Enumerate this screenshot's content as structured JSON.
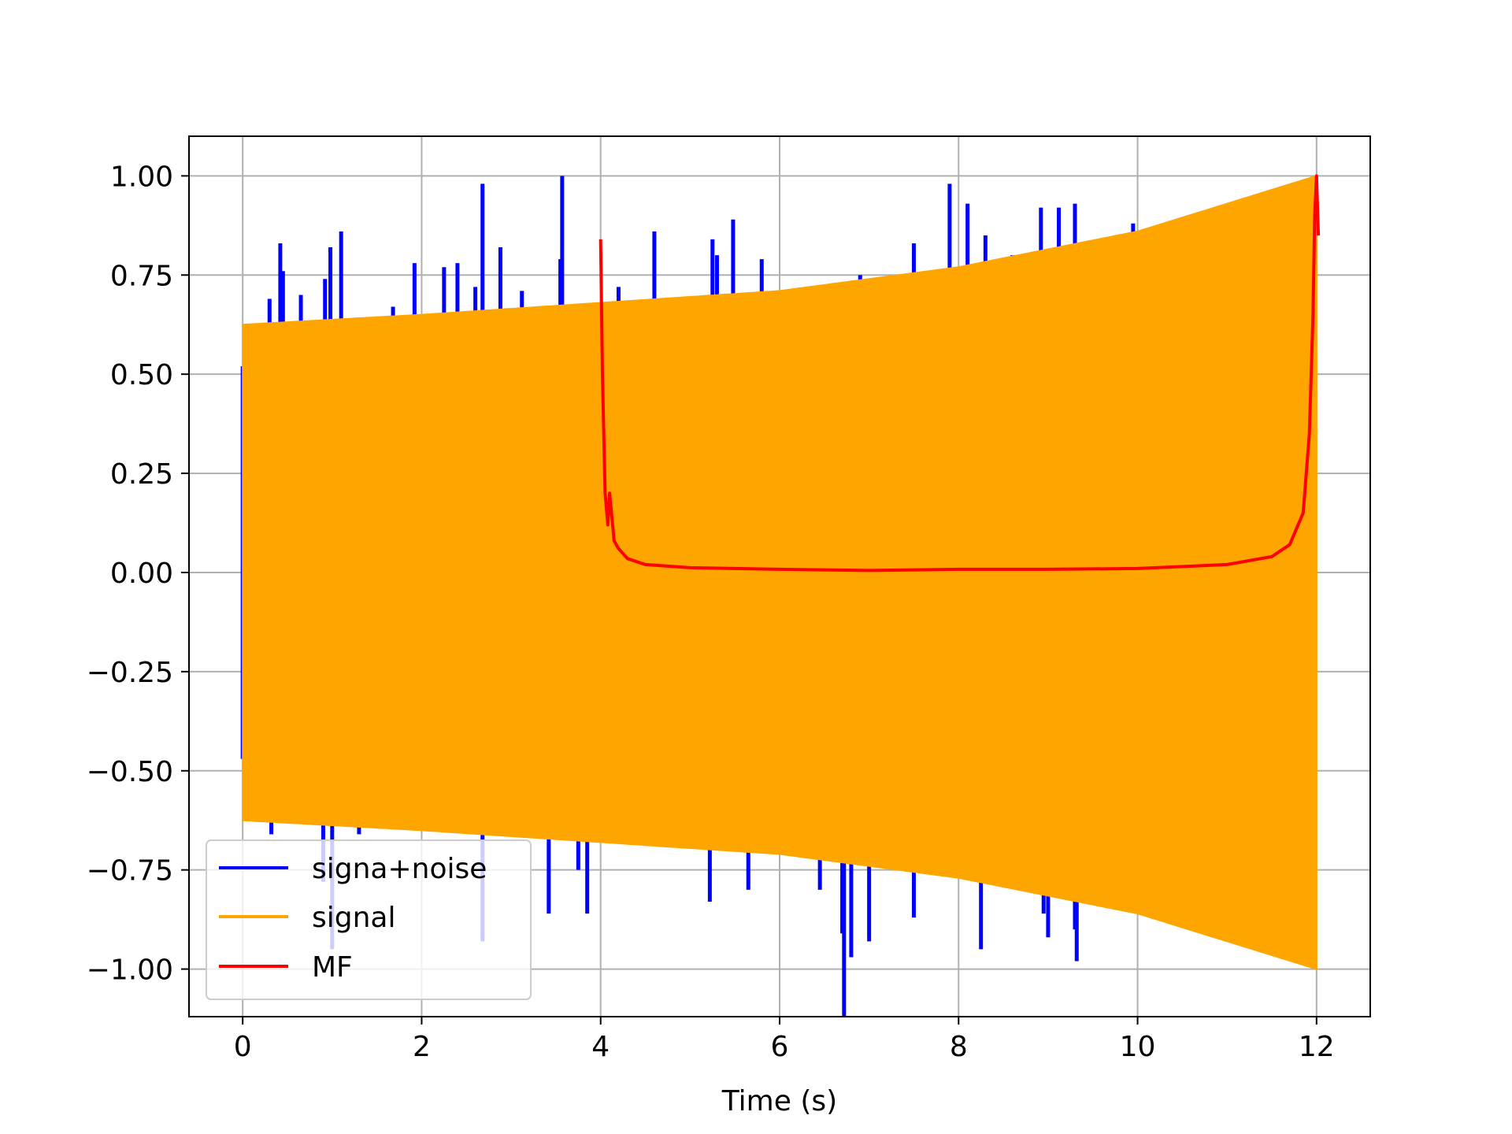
{
  "chart_data": {
    "type": "line",
    "title": "",
    "xlabel": "Time (s)",
    "ylabel": "",
    "xlim": [
      -0.6,
      12.6
    ],
    "ylim": [
      -1.12,
      1.1
    ],
    "xticks": [
      0,
      2,
      4,
      6,
      8,
      10,
      12
    ],
    "xtick_labels": [
      "0",
      "2",
      "4",
      "6",
      "8",
      "10",
      "12"
    ],
    "yticks": [
      1.0,
      0.75,
      0.5,
      0.25,
      0.0,
      -0.25,
      -0.5,
      -0.75,
      -1.0
    ],
    "ytick_labels": [
      "1.00",
      "0.75",
      "0.50",
      "0.25",
      "0.00",
      "−0.25",
      "−0.50",
      "−0.75",
      "−1.00"
    ],
    "grid": true,
    "legend_position": "lower-left",
    "legend": [
      "signa+noise",
      "signal",
      "MF"
    ],
    "series": [
      {
        "name": "signa+noise",
        "color": "#0000ff",
        "description_values": "signal plus spike noise; visible spikes (t, y)",
        "spikes": [
          [
            0.0,
            0.52
          ],
          [
            0.0,
            -0.47
          ],
          [
            0.3,
            0.69
          ],
          [
            0.42,
            0.83
          ],
          [
            0.45,
            0.76
          ],
          [
            0.65,
            0.7
          ],
          [
            0.92,
            0.74
          ],
          [
            0.98,
            0.82
          ],
          [
            1.05,
            0.62
          ],
          [
            1.1,
            0.86
          ],
          [
            1.68,
            0.67
          ],
          [
            1.92,
            0.78
          ],
          [
            2.25,
            0.77
          ],
          [
            2.4,
            0.78
          ],
          [
            2.6,
            0.72
          ],
          [
            2.68,
            0.98
          ],
          [
            2.88,
            0.82
          ],
          [
            3.12,
            0.71
          ],
          [
            3.55,
            0.79
          ],
          [
            3.57,
            1.0
          ],
          [
            4.2,
            0.72
          ],
          [
            4.6,
            0.86
          ],
          [
            5.25,
            0.84
          ],
          [
            5.3,
            0.8
          ],
          [
            5.48,
            0.89
          ],
          [
            5.8,
            0.79
          ],
          [
            6.9,
            0.75
          ],
          [
            7.5,
            0.83
          ],
          [
            7.9,
            0.98
          ],
          [
            8.1,
            0.93
          ],
          [
            8.3,
            0.85
          ],
          [
            8.6,
            0.8
          ],
          [
            8.92,
            0.92
          ],
          [
            9.12,
            0.92
          ],
          [
            9.3,
            0.93
          ],
          [
            9.95,
            0.88
          ],
          [
            0.32,
            -0.66
          ],
          [
            0.9,
            -0.78
          ],
          [
            1.0,
            -0.95
          ],
          [
            1.3,
            -0.66
          ],
          [
            2.68,
            -0.93
          ],
          [
            3.42,
            -0.86
          ],
          [
            3.75,
            -0.75
          ],
          [
            3.85,
            -0.86
          ],
          [
            4.75,
            -0.69
          ],
          [
            5.22,
            -0.83
          ],
          [
            5.65,
            -0.8
          ],
          [
            6.45,
            -0.8
          ],
          [
            6.7,
            -0.91
          ],
          [
            6.72,
            -1.12
          ],
          [
            6.8,
            -0.97
          ],
          [
            7.0,
            -0.93
          ],
          [
            7.5,
            -0.87
          ],
          [
            8.25,
            -0.95
          ],
          [
            8.95,
            -0.86
          ],
          [
            9.0,
            -0.92
          ],
          [
            9.3,
            -0.9
          ],
          [
            9.32,
            -0.98
          ]
        ]
      },
      {
        "name": "signal",
        "color": "#ffa500",
        "description_values": "dense oscillating chirp envelope (t, upper envelope)",
        "envelope": [
          [
            0,
            0.625
          ],
          [
            2,
            0.65
          ],
          [
            4,
            0.68
          ],
          [
            6,
            0.71
          ],
          [
            8,
            0.77
          ],
          [
            10,
            0.86
          ],
          [
            11,
            0.93
          ],
          [
            12,
            1.0
          ]
        ]
      },
      {
        "name": "MF",
        "color": "#ff0000",
        "description_values": "matched filter output (t, y)",
        "points": [
          [
            4.0,
            0.84
          ],
          [
            4.02,
            0.5
          ],
          [
            4.05,
            0.2
          ],
          [
            4.08,
            0.12
          ],
          [
            4.1,
            0.2
          ],
          [
            4.15,
            0.08
          ],
          [
            4.2,
            0.06
          ],
          [
            4.3,
            0.035
          ],
          [
            4.5,
            0.02
          ],
          [
            5.0,
            0.012
          ],
          [
            6.0,
            0.008
          ],
          [
            7.0,
            0.005
          ],
          [
            8.0,
            0.008
          ],
          [
            9.0,
            0.008
          ],
          [
            10.0,
            0.01
          ],
          [
            11.0,
            0.02
          ],
          [
            11.5,
            0.04
          ],
          [
            11.7,
            0.07
          ],
          [
            11.85,
            0.15
          ],
          [
            11.92,
            0.35
          ],
          [
            11.96,
            0.65
          ],
          [
            11.98,
            0.9
          ],
          [
            12.0,
            1.0
          ],
          [
            12.02,
            0.85
          ]
        ]
      }
    ]
  }
}
